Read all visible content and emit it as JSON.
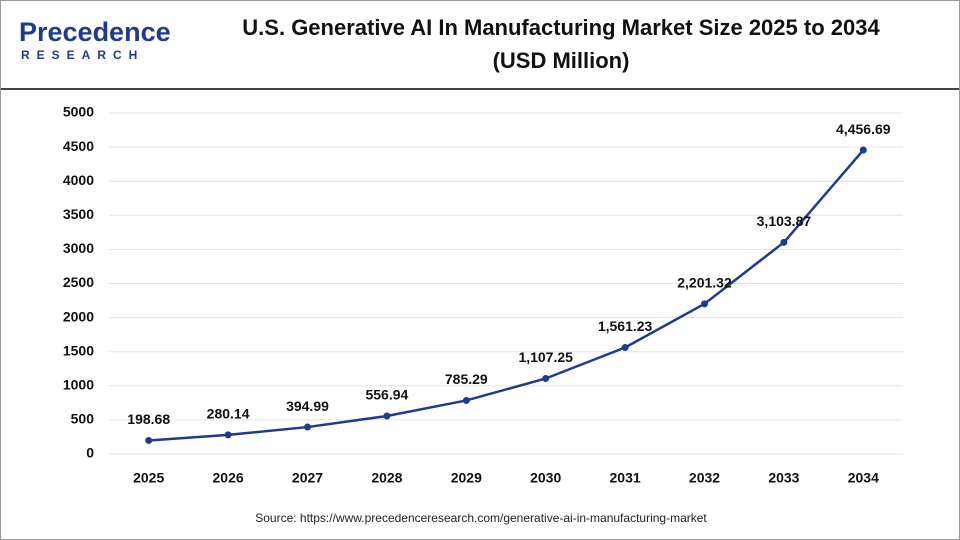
{
  "logo": {
    "name": "Precedence",
    "tagline": "RESEARCH"
  },
  "chart_data": {
    "type": "line",
    "title": "U.S. Generative AI In Manufacturing Market Size 2025 to 2034 (USD Million)",
    "source": "Source: https://www.precedenceresearch.com/generative-ai-in-manufacturing-market",
    "categories": [
      "2025",
      "2026",
      "2027",
      "2028",
      "2029",
      "2030",
      "2031",
      "2032",
      "2033",
      "2034"
    ],
    "series": [
      {
        "color": "#1f3a93",
        "values": [
          198.68,
          280.14,
          394.99,
          556.94,
          785.29,
          1107.25,
          1561.23,
          2201.32,
          3103.87,
          4456.69
        ],
        "value_labels": [
          "198.68",
          "280.14",
          "394.99",
          "556.94",
          "785.29",
          "1,107.25",
          "1,561.23",
          "2,201.32",
          "3,103.87",
          "4,456.69"
        ]
      }
    ],
    "ylim": [
      0,
      5000
    ],
    "yticks": [
      0,
      500,
      1000,
      1500,
      2000,
      2500,
      3000,
      3500,
      4000,
      4500,
      5000
    ],
    "grid": true
  }
}
